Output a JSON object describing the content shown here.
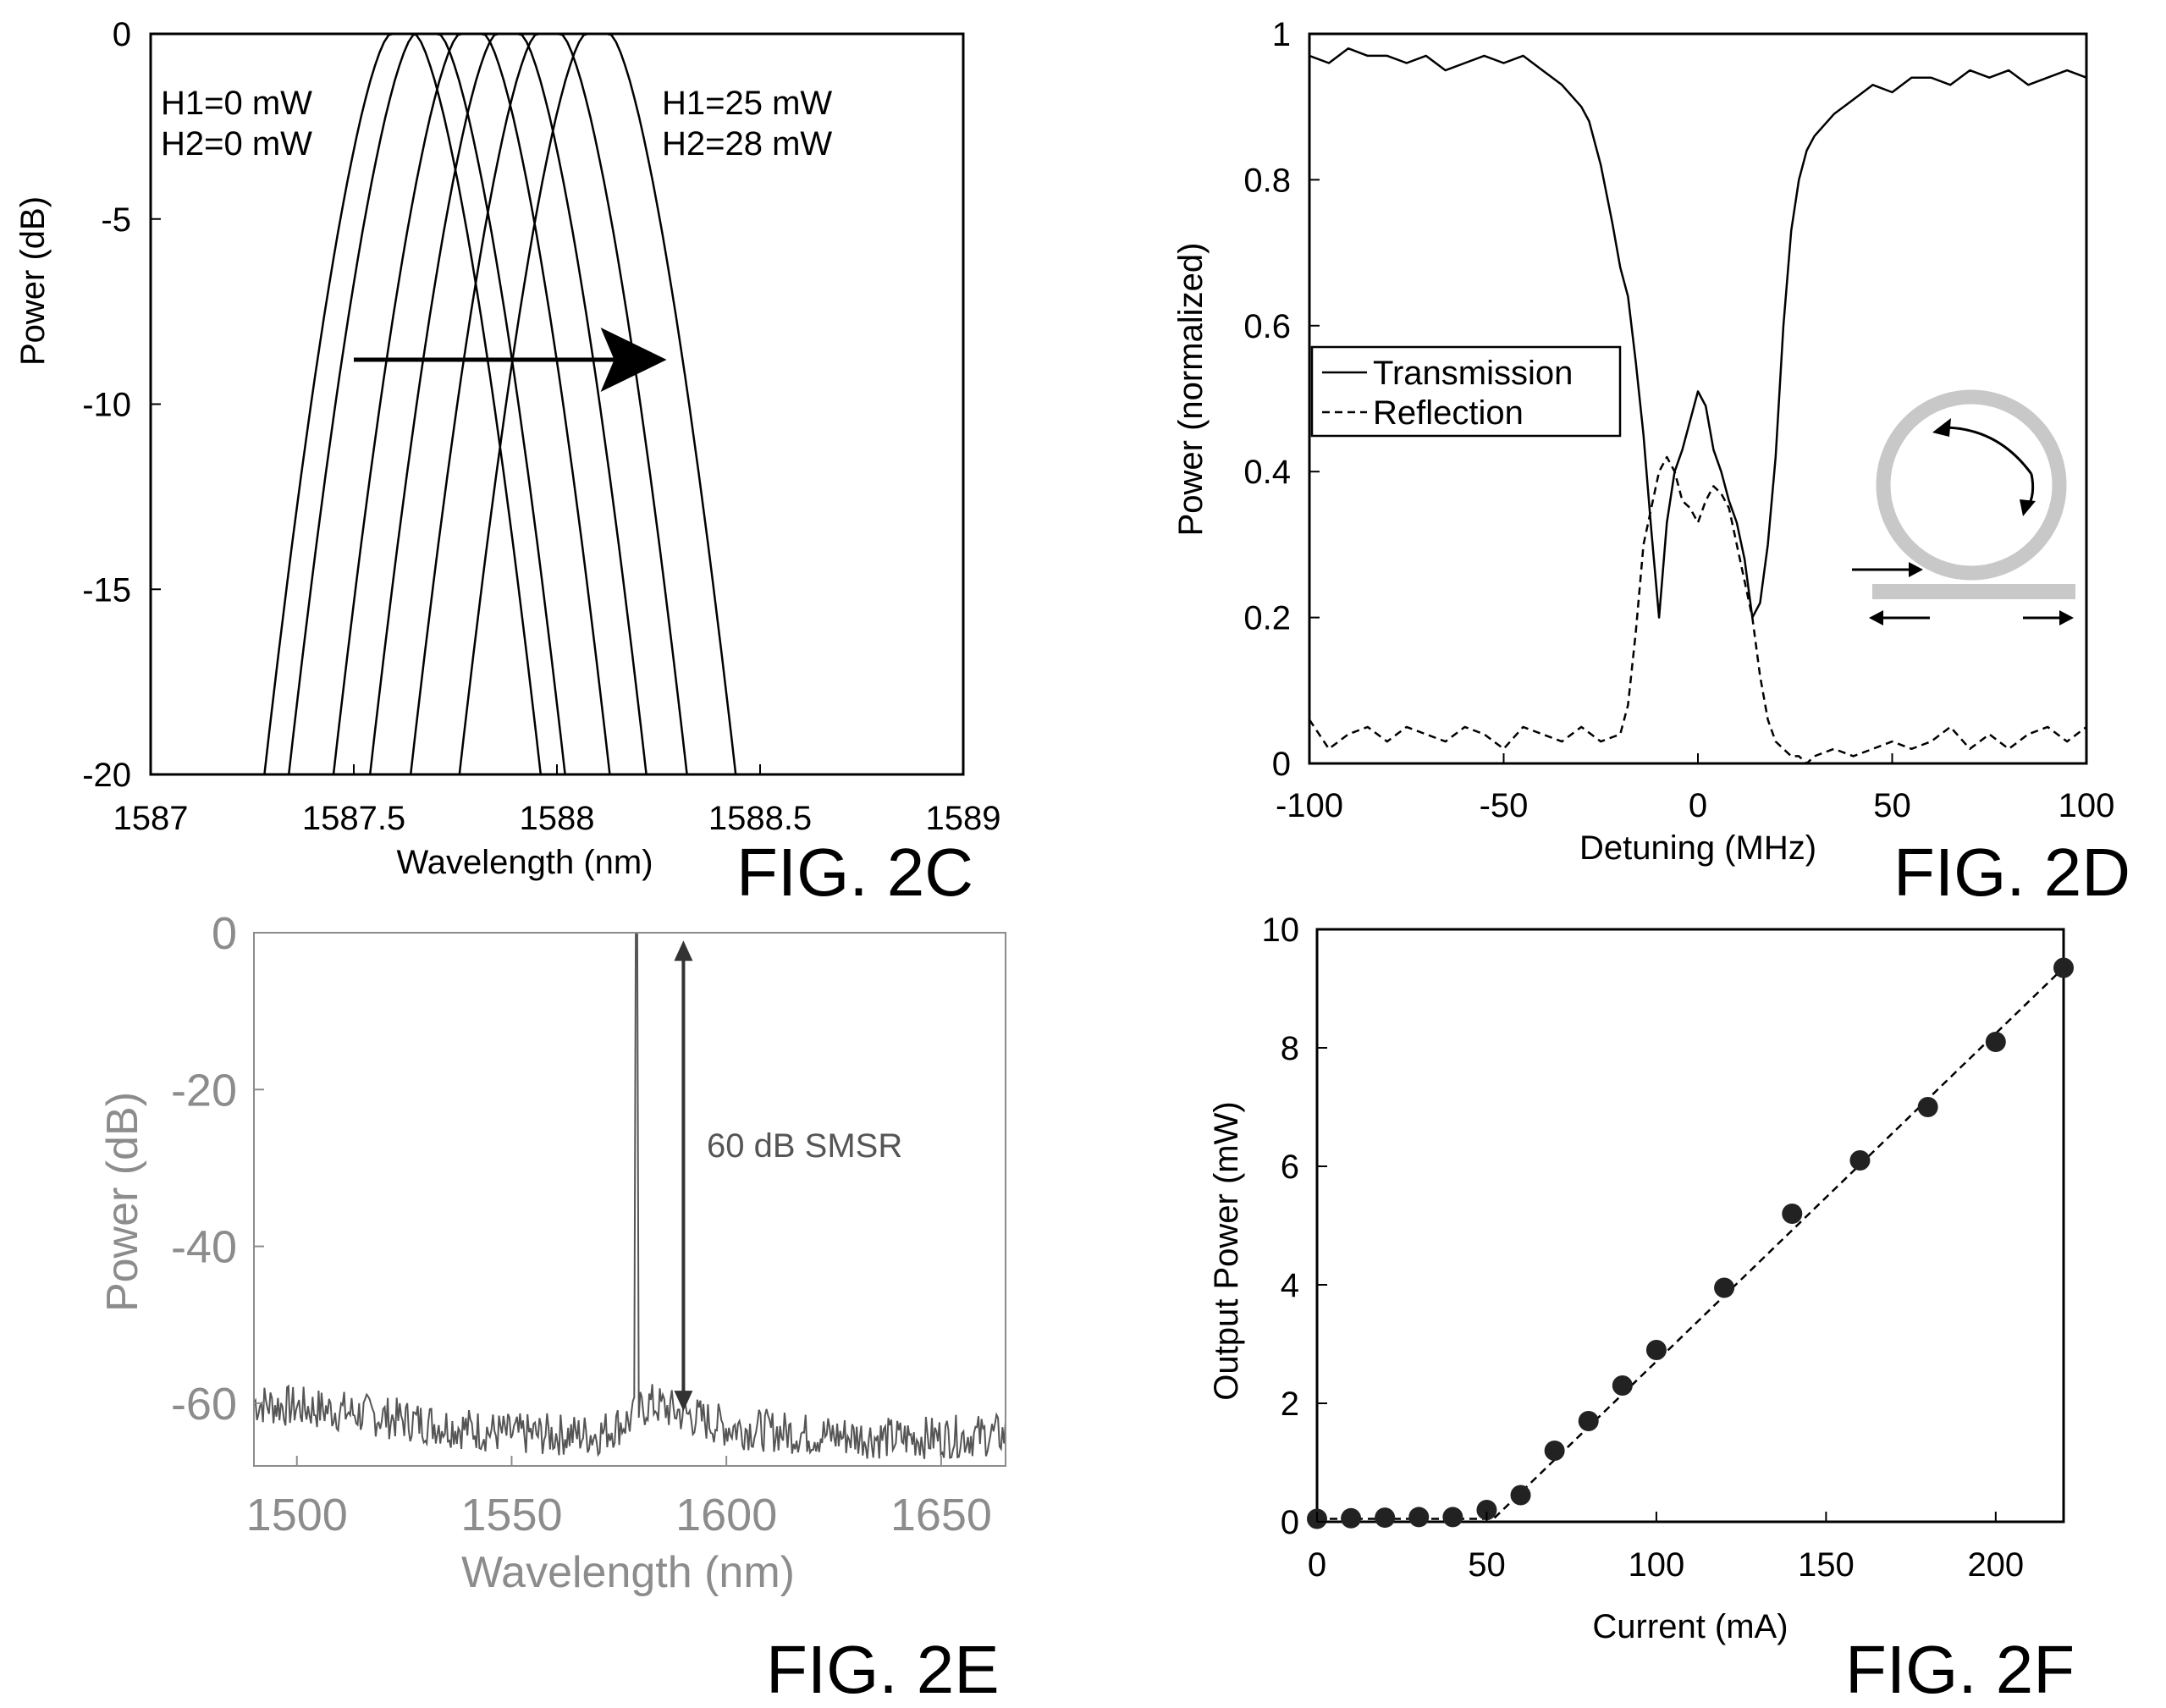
{
  "colors": {
    "ink": "#000000",
    "grey_text": "#8c8c8c",
    "grey_trace": "#555555",
    "ring_grey": "#c8c8c8",
    "background": "#ffffff"
  },
  "chart_data": [
    {
      "figure_label": "FIG. 2C",
      "type": "line",
      "xlabel": "Wavelength (nm)",
      "ylabel": "Power (dB)",
      "xlim": [
        1587,
        1589
      ],
      "ylim": [
        -20,
        0
      ],
      "x_ticks": [
        "1587",
        "1587.5",
        "1588",
        "1588.5",
        "1589"
      ],
      "y_ticks": [
        "0",
        "-5",
        "-10",
        "-15",
        "-20"
      ],
      "annotation_left": [
        "H1=0 mW",
        "H2=0 mW"
      ],
      "annotation_right": [
        "H1=25 mW",
        "H2=28 mW"
      ],
      "arrow": {
        "x_start": 1587.5,
        "x_end": 1588.27,
        "y": -8.8
      },
      "peak_centers": [
        1587.62,
        1587.68,
        1587.79,
        1587.88,
        1587.98,
        1588.1
      ],
      "peak_half_width_at_minus20": 0.34,
      "peak_flat_top_half_width": 0.03,
      "grid": false,
      "legend": "none"
    },
    {
      "figure_label": "FIG. 2D",
      "type": "line",
      "xlabel": "Detuning (MHz)",
      "ylabel": "Power (normalized)",
      "xlim": [
        -100,
        100
      ],
      "ylim": [
        0,
        1
      ],
      "x_ticks": [
        "-100",
        "-50",
        "0",
        "50",
        "100"
      ],
      "y_ticks": [
        "0",
        "0.2",
        "0.4",
        "0.6",
        "0.8",
        "1"
      ],
      "legend_position": "left",
      "series": [
        {
          "name": "Transmission",
          "style": "solid",
          "x": [
            -100,
            -95,
            -90,
            -85,
            -80,
            -75,
            -70,
            -65,
            -60,
            -55,
            -50,
            -45,
            -40,
            -35,
            -30,
            -28,
            -25,
            -22,
            -20,
            -18,
            -16,
            -14,
            -12,
            -10,
            -8,
            -6,
            -4,
            -2,
            0,
            2,
            4,
            6,
            8,
            10,
            12,
            14,
            16,
            18,
            20,
            22,
            24,
            26,
            28,
            30,
            35,
            40,
            45,
            50,
            55,
            60,
            65,
            70,
            75,
            80,
            85,
            90,
            95,
            100
          ],
          "y": [
            0.97,
            0.96,
            0.98,
            0.97,
            0.97,
            0.96,
            0.97,
            0.95,
            0.96,
            0.97,
            0.96,
            0.97,
            0.95,
            0.93,
            0.9,
            0.88,
            0.82,
            0.74,
            0.68,
            0.64,
            0.55,
            0.45,
            0.32,
            0.2,
            0.33,
            0.4,
            0.43,
            0.47,
            0.51,
            0.49,
            0.43,
            0.4,
            0.36,
            0.33,
            0.28,
            0.2,
            0.22,
            0.3,
            0.42,
            0.6,
            0.73,
            0.8,
            0.84,
            0.86,
            0.89,
            0.91,
            0.93,
            0.92,
            0.94,
            0.94,
            0.93,
            0.95,
            0.94,
            0.95,
            0.93,
            0.94,
            0.95,
            0.94
          ]
        },
        {
          "name": "Reflection",
          "style": "dashed",
          "x": [
            -100,
            -95,
            -90,
            -85,
            -80,
            -75,
            -70,
            -65,
            -60,
            -55,
            -50,
            -45,
            -40,
            -35,
            -30,
            -25,
            -20,
            -18,
            -16,
            -14,
            -12,
            -10,
            -8,
            -6,
            -4,
            -2,
            0,
            2,
            4,
            6,
            8,
            10,
            12,
            14,
            16,
            18,
            20,
            22,
            24,
            26,
            28,
            30,
            35,
            40,
            45,
            50,
            55,
            60,
            65,
            70,
            75,
            80,
            85,
            90,
            95,
            100
          ],
          "y": [
            0.06,
            0.02,
            0.04,
            0.05,
            0.03,
            0.05,
            0.04,
            0.03,
            0.05,
            0.04,
            0.02,
            0.05,
            0.04,
            0.03,
            0.05,
            0.03,
            0.04,
            0.08,
            0.18,
            0.3,
            0.35,
            0.4,
            0.42,
            0.4,
            0.36,
            0.35,
            0.33,
            0.36,
            0.38,
            0.37,
            0.35,
            0.3,
            0.25,
            0.2,
            0.12,
            0.06,
            0.03,
            0.02,
            0.01,
            0.01,
            0.0,
            0.01,
            0.02,
            0.01,
            0.02,
            0.03,
            0.02,
            0.03,
            0.05,
            0.02,
            0.04,
            0.02,
            0.04,
            0.05,
            0.03,
            0.05
          ]
        }
      ],
      "grid": false
    },
    {
      "figure_label": "FIG. 2E",
      "type": "line",
      "xlabel": "Wavelength (nm)",
      "ylabel": "Power (dB)",
      "xlim": [
        1490,
        1665
      ],
      "ylim": [
        -68,
        0
      ],
      "x_ticks": [
        "1500",
        "1550",
        "1600",
        "1650"
      ],
      "y_ticks": [
        "0",
        "-20",
        "-40",
        "-60"
      ],
      "annotation": "60 dB SMSR",
      "smsr_arrow": {
        "x": 1590,
        "y_top": -1,
        "y_bottom": -61
      },
      "peak": {
        "x": 1579,
        "y": 0
      },
      "noise_floor": {
        "x": [
          1490,
          1510,
          1530,
          1550,
          1570,
          1578,
          1582,
          1600,
          1620,
          1640,
          1665
        ],
        "y": [
          -60,
          -61,
          -62.5,
          -64,
          -64,
          -62,
          -60,
          -63,
          -64,
          -64.5,
          -64
        ]
      },
      "grid": false,
      "legend": "none"
    },
    {
      "figure_label": "FIG. 2F",
      "type": "scatter",
      "xlabel": "Current (mA)",
      "ylabel": "Output Power (mW)",
      "xlim": [
        0,
        220
      ],
      "ylim": [
        0,
        10
      ],
      "x_ticks": [
        "0",
        "50",
        "100",
        "150",
        "200"
      ],
      "y_ticks": [
        "0",
        "2",
        "4",
        "6",
        "8",
        "10"
      ],
      "series": [
        {
          "name": "",
          "x": [
            0,
            10,
            20,
            30,
            40,
            50,
            60,
            70,
            80,
            90,
            100,
            120,
            140,
            160,
            180,
            200,
            220
          ],
          "y": [
            0.05,
            0.06,
            0.07,
            0.08,
            0.08,
            0.2,
            0.45,
            1.2,
            1.7,
            2.3,
            2.9,
            3.95,
            5.2,
            6.1,
            7.0,
            8.1,
            9.35
          ]
        }
      ],
      "fit_line": {
        "x": [
          0,
          52,
          220
        ],
        "y": [
          0.05,
          0.05,
          9.35
        ],
        "style": "dashed"
      },
      "grid": false,
      "legend": "none"
    }
  ]
}
